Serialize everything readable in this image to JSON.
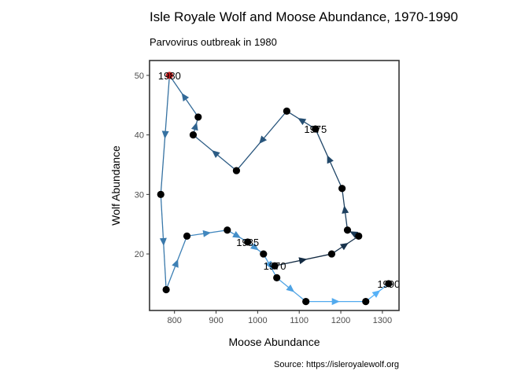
{
  "chart_data": {
    "type": "line",
    "title": "Isle Royale Wolf and Moose Abundance, 1970-1990",
    "subtitle": "Parvovirus outbreak in 1980",
    "caption": "Source: https://isleroyalewolf.org",
    "xlabel": "Moose Abundance",
    "ylabel": "Wolf Abundance",
    "xlim": [
      740,
      1340
    ],
    "ylim": [
      10.5,
      52.5
    ],
    "x_ticks": [
      800,
      900,
      1000,
      1100,
      1200,
      1300
    ],
    "y_ticks": [
      20,
      30,
      40,
      50
    ],
    "grid": false,
    "points": [
      {
        "year": 1970,
        "x": 1041,
        "y": 18
      },
      {
        "year": 1971,
        "x": 1178,
        "y": 20
      },
      {
        "year": 1972,
        "x": 1243,
        "y": 23
      },
      {
        "year": 1973,
        "x": 1216,
        "y": 24
      },
      {
        "year": 1974,
        "x": 1203,
        "y": 31
      },
      {
        "year": 1975,
        "x": 1139,
        "y": 41
      },
      {
        "year": 1976,
        "x": 1070,
        "y": 44
      },
      {
        "year": 1977,
        "x": 949,
        "y": 34
      },
      {
        "year": 1978,
        "x": 845,
        "y": 40
      },
      {
        "year": 1979,
        "x": 857,
        "y": 43
      },
      {
        "year": 1980,
        "x": 788,
        "y": 50
      },
      {
        "year": 1981,
        "x": 767,
        "y": 30
      },
      {
        "year": 1982,
        "x": 780,
        "y": 14
      },
      {
        "year": 1983,
        "x": 830,
        "y": 23
      },
      {
        "year": 1984,
        "x": 927,
        "y": 24
      },
      {
        "year": 1985,
        "x": 976,
        "y": 22
      },
      {
        "year": 1986,
        "x": 1014,
        "y": 20
      },
      {
        "year": 1987,
        "x": 1046,
        "y": 16
      },
      {
        "year": 1988,
        "x": 1116,
        "y": 12
      },
      {
        "year": 1989,
        "x": 1260,
        "y": 12
      },
      {
        "year": 1990,
        "x": 1315,
        "y": 15
      }
    ],
    "labeled_years": [
      {
        "year": 1970,
        "text": "1970"
      },
      {
        "year": 1975,
        "text": "1975"
      },
      {
        "year": 1980,
        "text": "1980"
      },
      {
        "year": 1985,
        "text": "1985"
      },
      {
        "year": 1990,
        "text": "1990"
      }
    ],
    "highlight_year": 1980,
    "colors": {
      "point": "#000000",
      "highlight": "#cc1f1f",
      "segment_start": "#132b43",
      "segment_end": "#56b1f7",
      "axis": "#333333"
    }
  }
}
